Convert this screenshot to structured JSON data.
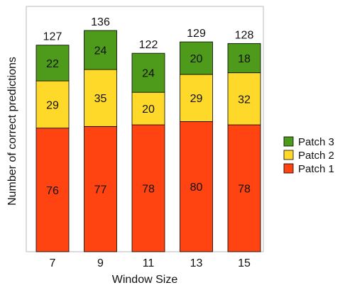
{
  "chart_data": {
    "type": "bar",
    "stacked": true,
    "categories": [
      "7",
      "9",
      "11",
      "13",
      "15"
    ],
    "series": [
      {
        "name": "Patch 1",
        "color": "#FF4412",
        "values": [
          76,
          77,
          78,
          80,
          78
        ]
      },
      {
        "name": "Patch 2",
        "color": "#FFD92A",
        "values": [
          29,
          35,
          20,
          29,
          32
        ]
      },
      {
        "name": "Patch 3",
        "color": "#4E9A1B",
        "values": [
          22,
          24,
          24,
          20,
          18
        ]
      }
    ],
    "totals": [
      "127",
      "136",
      "122",
      "129",
      "128"
    ],
    "xlabel": "Window Size",
    "ylabel": "Number of correct predictions",
    "ylim": [
      0,
      136
    ],
    "grid": false,
    "legend": {
      "position": "right",
      "items": [
        {
          "label": "Patch 3",
          "color": "#4E9A1B"
        },
        {
          "label": "Patch 2",
          "color": "#FFD92A"
        },
        {
          "label": "Patch 1",
          "color": "#FF4412"
        }
      ]
    }
  }
}
